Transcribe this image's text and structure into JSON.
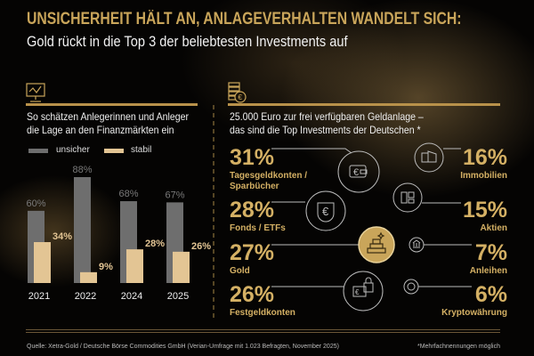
{
  "header": {
    "title": "UNSICHERHEIT HÄLT AN, ANLAGEVERHALTEN WANDELT SICH:",
    "subtitle": "Gold rückt in die Top 3 der beliebtesten Investments auf"
  },
  "left_panel": {
    "icon": "chart-presentation-icon",
    "heading_line1": "So schätzen Anlegerinnen und Anleger",
    "heading_line2": "die Lage an den Finanzmärkten ein"
  },
  "chart_data": {
    "type": "bar",
    "categories": [
      "2021",
      "2022",
      "2024",
      "2025"
    ],
    "series": [
      {
        "name": "unsicher",
        "values": [
          60,
          88,
          68,
          67
        ],
        "color": "#6e6e6e",
        "labels": [
          "60%",
          "88%",
          "68%",
          "67%"
        ]
      },
      {
        "name": "stabil",
        "values": [
          34,
          9,
          28,
          26
        ],
        "color": "#e3c594",
        "labels": [
          "34%",
          "9%",
          "28%",
          "26%"
        ]
      }
    ],
    "ylim": [
      0,
      100
    ],
    "grid": false,
    "legend": "top-left"
  },
  "right_panel": {
    "icon": "coins-euro-icon",
    "heading_line1": "25.000 Euro zur frei verfügbaren Geldanlage –",
    "heading_line2": "das sind die Top Investments der Deutschen *",
    "items": [
      {
        "pct": "31%",
        "label1": "Tagesgeldkonten /",
        "label2": "Sparbücher",
        "icon": "wallet-euro-icon"
      },
      {
        "pct": "28%",
        "label1": "Fonds / ETFs",
        "icon": "euro-shield-icon"
      },
      {
        "pct": "27%",
        "label1": "Gold",
        "icon": "gold-bars-icon"
      },
      {
        "pct": "26%",
        "label1": "Festgeldkonten",
        "icon": "euro-lock-icon"
      },
      {
        "pct": "16%",
        "label1": "Immobilien",
        "icon": "buildings-icon"
      },
      {
        "pct": "15%",
        "label1": "Aktien",
        "icon": "stock-panels-icon"
      },
      {
        "pct": "7%",
        "label1": "Anleihen",
        "icon": "bank-icon"
      },
      {
        "pct": "6%",
        "label1": "Kryptowährung",
        "icon": "crypto-coin-icon"
      }
    ]
  },
  "footer": {
    "source": "Quelle: Xetra-Gold / Deutsche Börse Commodities GmbH (Verian-Umfrage mit 1.023 Befragten, November 2025)",
    "note": "*Mehrfachnennungen möglich"
  },
  "colors": {
    "gold": "#c9a55a",
    "grey": "#6e6e6e",
    "beige": "#e3c594"
  }
}
